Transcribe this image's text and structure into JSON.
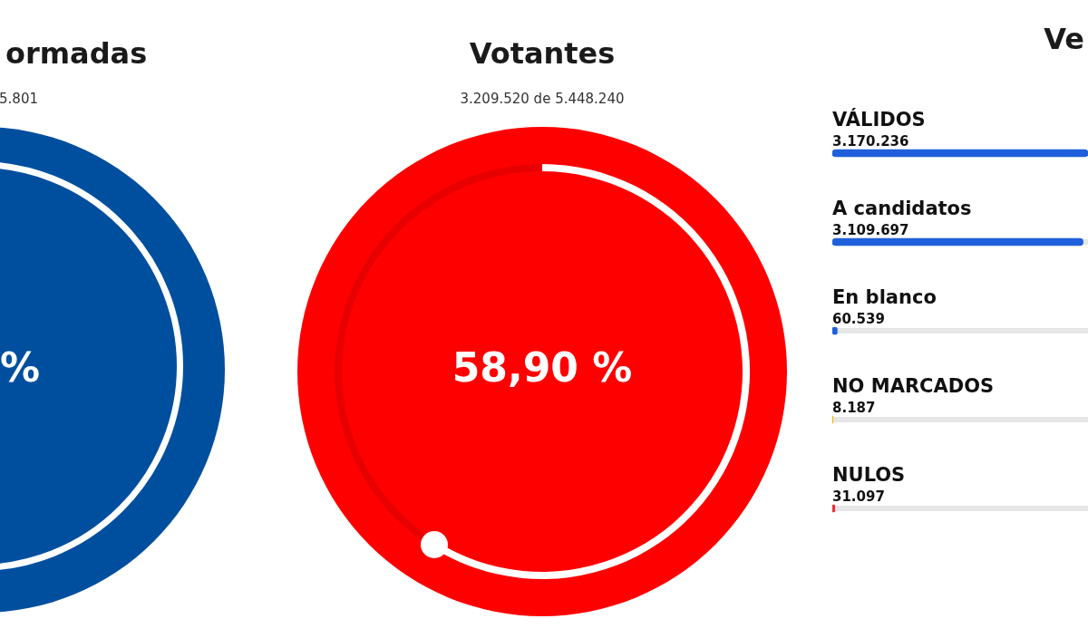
{
  "chart_data": [
    {
      "type": "other",
      "title": "ormadas",
      "subtitle": "5.801",
      "annotations": [
        "%"
      ]
    },
    {
      "type": "donut",
      "title": "Votantes",
      "subtitle": "3.209.520 de 5.448.240",
      "categories": [
        null,
        null
      ],
      "values": [
        58.9,
        41.1
      ],
      "colors": [
        "#ffffff",
        "#e80000"
      ],
      "annotations": [
        "58,90 %"
      ]
    },
    {
      "type": "bar",
      "orientation": "horizontal",
      "title": "Ve",
      "categories": [
        "VÁLIDOS",
        "A candidatos",
        "En blanco",
        "NO MARCADOS",
        "NULOS"
      ],
      "values": [
        3170236,
        3109697,
        60539,
        8187,
        31097
      ],
      "value_labels": [
        "3.170.236",
        "3.109.697",
        "60.539",
        "8.187",
        "31.097"
      ],
      "colors": [
        "#1f5fdb",
        "#1f5fdb",
        "#1f5fdb",
        "#f0b400",
        "#e8303a"
      ]
    }
  ]
}
